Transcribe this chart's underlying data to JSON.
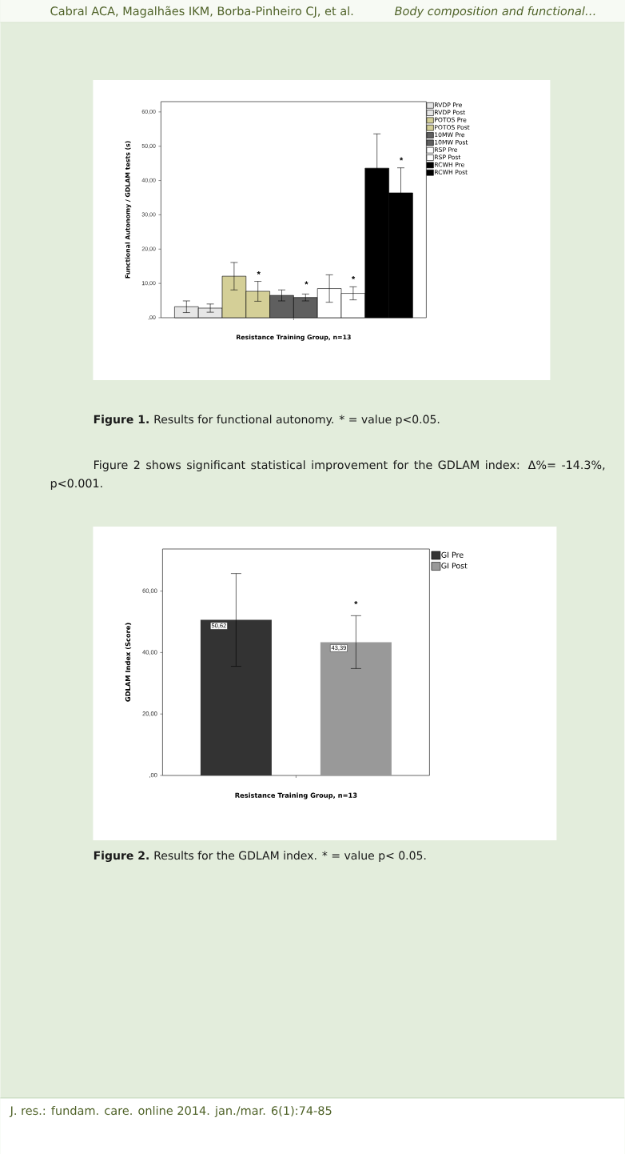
{
  "chart_data": [
    {
      "type": "bar",
      "xlabel": "Resistance Training Group, n=13",
      "ylabel": "Functional Autonomy / GDLAM tests (s)",
      "categories": [
        null
      ],
      "ylim": [
        0,
        63
      ],
      "yticks": [
        {
          "value": 0,
          "label": ",00"
        },
        {
          "value": 10,
          "label": "10,00"
        },
        {
          "value": 20,
          "label": "20,00"
        },
        {
          "value": 30,
          "label": "30,00"
        },
        {
          "value": 40,
          "label": "40,00"
        },
        {
          "value": 50,
          "label": "50,00"
        },
        {
          "value": 60,
          "label": "60,00"
        }
      ],
      "legend": "top right",
      "series": [
        {
          "name": "RVDP Pre",
          "color": "#e6e6e6",
          "values": [
            3.2
          ],
          "errors": [
            1.7
          ]
        },
        {
          "name": "RVDP Post",
          "color": "#e6e6e6",
          "values": [
            2.8
          ],
          "errors": [
            1.2
          ]
        },
        {
          "name": "POTOS Pre",
          "color": "#d4cf97",
          "values": [
            12.1
          ],
          "errors": [
            4.0
          ]
        },
        {
          "name": "POTOS Post",
          "color": "#d4cf97",
          "values": [
            7.7
          ],
          "errors": [
            2.9
          ]
        },
        {
          "name": "10MW Pre",
          "color": "#5f5f5f",
          "values": [
            6.5
          ],
          "errors": [
            1.6
          ]
        },
        {
          "name": "10MW Post",
          "color": "#5f5f5f",
          "values": [
            5.9
          ],
          "errors": [
            1.0
          ]
        },
        {
          "name": "RSP Pre",
          "color": "#ffffff",
          "values": [
            8.5
          ],
          "errors": [
            4.0
          ]
        },
        {
          "name": "RSP Post",
          "color": "#ffffff",
          "values": [
            7.1
          ],
          "errors": [
            1.9
          ]
        },
        {
          "name": "RCWH Pre",
          "color": "#000000",
          "values": [
            43.6
          ],
          "errors": [
            10.0
          ]
        },
        {
          "name": "RCWH Post",
          "color": "#000000",
          "values": [
            36.4
          ],
          "errors": [
            7.3
          ]
        }
      ],
      "annotations": [
        "Cabral ACA, Magalhães IKM, Borba-Pinheiro CJ, et al.",
        "Body composition and functional…",
        "*",
        "*",
        "*",
        "*",
        "Figure 1.",
        "Results for functional autonomy. * = value p<0.05.",
        "Figure 2 shows significant statistical improvement for the GDLAM index: Δ%= -14.3%, p<0.001."
      ]
    },
    {
      "type": "bar",
      "xlabel": "Resistance Training Group, n=13",
      "ylabel": "GDLAM Index (Score)",
      "categories": [
        null
      ],
      "ylim": [
        0,
        73.7
      ],
      "yticks": [
        {
          "value": 0,
          "label": ",00"
        },
        {
          "value": 20,
          "label": "20,00"
        },
        {
          "value": 40,
          "label": "40,00"
        },
        {
          "value": 60,
          "label": "60,00"
        }
      ],
      "legend": "top right",
      "series": [
        {
          "name": "GI Pre",
          "color": "#333333",
          "values": [
            50.62
          ],
          "errors": [
            15.1
          ],
          "value_labels": [
            "50,62"
          ]
        },
        {
          "name": "GI Post",
          "color": "#999999",
          "values": [
            43.39
          ],
          "errors": [
            8.6
          ],
          "value_labels": [
            "43,39"
          ]
        }
      ],
      "annotations": [
        "*",
        "Figure 2.",
        "Results for the GDLAM index. * = value p< 0.05.",
        "J. res.: fundam. care. online 2014. jan./mar. 6(1):74-85"
      ]
    }
  ]
}
